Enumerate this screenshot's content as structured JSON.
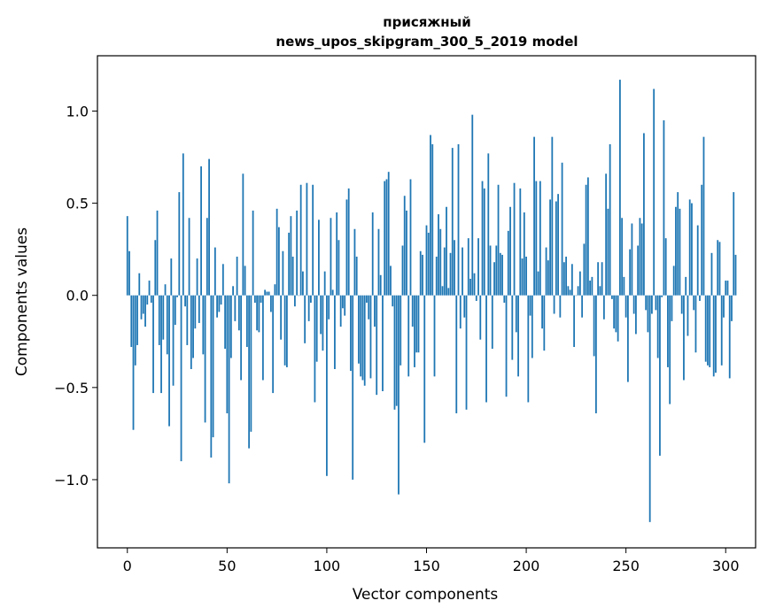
{
  "chart_data": {
    "type": "bar",
    "title": [
      "присяжный",
      "news_upos_skipgram_300_5_2019 model"
    ],
    "xlabel": "Vector components",
    "ylabel": "Components values",
    "xlim": [
      -15,
      315
    ],
    "ylim": [
      -1.37,
      1.3
    ],
    "xticks": [
      0,
      50,
      100,
      150,
      200,
      250,
      300
    ],
    "yticks": [
      -1.0,
      -0.5,
      0.0,
      0.5,
      1.0
    ],
    "ytick_labels": [
      "−1.0",
      "−0.5",
      "0.0",
      "0.5",
      "1.0"
    ],
    "grid": false,
    "bar_color": "#1f77b4",
    "values": [
      0.43,
      0.24,
      -0.28,
      -0.73,
      -0.38,
      -0.27,
      0.12,
      -0.13,
      -0.1,
      -0.17,
      -0.05,
      0.08,
      -0.04,
      -0.53,
      0.3,
      0.46,
      -0.27,
      -0.53,
      -0.24,
      0.06,
      -0.32,
      -0.71,
      0.2,
      -0.49,
      -0.16,
      -0.01,
      0.56,
      -0.9,
      0.77,
      -0.06,
      -0.27,
      0.42,
      -0.4,
      -0.34,
      -0.18,
      0.2,
      -0.15,
      0.7,
      -0.32,
      -0.69,
      0.42,
      0.74,
      -0.88,
      -0.77,
      0.26,
      -0.12,
      -0.09,
      -0.05,
      0.17,
      -0.29,
      -0.64,
      -1.02,
      -0.34,
      0.05,
      -0.14,
      0.21,
      -0.19,
      -0.46,
      0.66,
      0.16,
      -0.28,
      -0.83,
      -0.74,
      0.46,
      -0.04,
      -0.19,
      -0.2,
      -0.04,
      -0.46,
      0.03,
      0.02,
      0.02,
      -0.09,
      -0.53,
      0.06,
      0.47,
      0.37,
      -0.24,
      0.24,
      -0.38,
      -0.39,
      0.34,
      0.43,
      0.21,
      -0.06,
      0.46,
      0.0,
      0.6,
      0.13,
      -0.26,
      0.61,
      -0.14,
      -0.04,
      0.6,
      -0.58,
      -0.36,
      0.41,
      -0.21,
      -0.3,
      0.13,
      -0.98,
      -0.13,
      0.42,
      0.03,
      -0.4,
      0.45,
      0.3,
      -0.17,
      -0.07,
      -0.11,
      0.52,
      0.58,
      -0.41,
      -1.0,
      0.36,
      0.21,
      -0.37,
      -0.44,
      -0.46,
      -0.49,
      -0.04,
      -0.13,
      -0.45,
      0.45,
      -0.17,
      -0.54,
      0.36,
      0.11,
      -0.52,
      0.62,
      0.63,
      0.67,
      0.16,
      -0.06,
      -0.62,
      -0.6,
      -1.08,
      -0.38,
      0.27,
      0.54,
      0.46,
      -0.44,
      0.63,
      -0.17,
      -0.39,
      -0.31,
      -0.31,
      0.24,
      0.22,
      -0.8,
      0.38,
      0.34,
      0.87,
      0.82,
      -0.44,
      0.21,
      0.44,
      0.36,
      0.05,
      0.26,
      0.48,
      0.04,
      0.23,
      0.8,
      0.3,
      -0.64,
      0.82,
      -0.18,
      0.26,
      -0.12,
      -0.62,
      0.31,
      0.09,
      0.98,
      0.12,
      -0.03,
      0.31,
      -0.24,
      0.62,
      0.58,
      -0.58,
      0.77,
      0.27,
      -0.29,
      0.18,
      0.27,
      0.6,
      0.23,
      0.22,
      -0.04,
      -0.55,
      0.35,
      0.48,
      -0.35,
      0.61,
      -0.2,
      -0.44,
      0.58,
      0.2,
      0.45,
      0.21,
      -0.58,
      -0.11,
      -0.34,
      0.86,
      0.62,
      0.13,
      0.62,
      -0.18,
      -0.3,
      0.26,
      0.19,
      0.52,
      0.86,
      -0.1,
      0.51,
      0.55,
      -0.12,
      0.72,
      0.18,
      0.21,
      0.05,
      0.03,
      0.17,
      -0.28,
      0.0,
      0.05,
      0.13,
      -0.12,
      0.28,
      0.6,
      0.64,
      0.08,
      0.1,
      -0.33,
      -0.64,
      0.18,
      0.05,
      0.18,
      -0.13,
      0.66,
      0.47,
      0.82,
      -0.02,
      -0.18,
      -0.2,
      -0.25,
      1.17,
      0.42,
      0.1,
      -0.12,
      -0.47,
      0.25,
      0.39,
      -0.1,
      -0.21,
      0.27,
      0.42,
      0.39,
      0.88,
      -0.08,
      -0.2,
      -1.23,
      -0.1,
      1.12,
      -0.08,
      -0.34,
      -0.87,
      -0.01,
      0.95,
      0.31,
      -0.39,
      -0.59,
      -0.14,
      0.16,
      0.48,
      0.56,
      0.47,
      -0.1,
      -0.46,
      0.1,
      -0.22,
      0.52,
      0.5,
      -0.08,
      -0.31,
      0.38,
      -0.03,
      0.6,
      0.86,
      -0.36,
      -0.38,
      -0.39,
      0.23,
      -0.44,
      -0.42,
      0.3,
      0.29,
      -0.38,
      -0.12,
      0.08,
      0.08,
      -0.45,
      -0.14,
      0.56,
      0.22
    ]
  }
}
